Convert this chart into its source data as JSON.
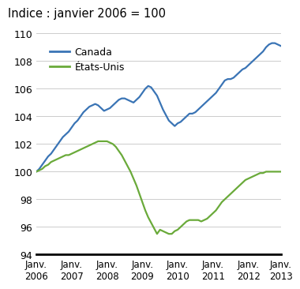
{
  "title": "Indice : janvier 2006 = 100",
  "canada_color": "#3a74b5",
  "us_color": "#6aaa3a",
  "legend_canada": "Canada",
  "legend_us": "États-Unis",
  "ylim": [
    94,
    110
  ],
  "yticks": [
    94,
    96,
    98,
    100,
    102,
    104,
    106,
    108,
    110
  ],
  "xlim_start": 0,
  "xlim_end": 83,
  "xtick_positions": [
    0,
    12,
    24,
    36,
    48,
    60,
    72,
    83
  ],
  "xtick_labels": [
    "Janv.\n2006",
    "Janv.\n2007",
    "Janv.\n2008",
    "Janv.\n2009",
    "Janv.\n2010",
    "Janv.\n2011",
    "Janv.\n2012",
    "Janv.\n2013"
  ],
  "canada": [
    100.0,
    100.2,
    100.5,
    100.8,
    101.1,
    101.3,
    101.6,
    101.9,
    102.2,
    102.5,
    102.7,
    102.9,
    103.2,
    103.5,
    103.7,
    104.0,
    104.3,
    104.5,
    104.7,
    104.8,
    104.9,
    104.8,
    104.6,
    104.4,
    104.5,
    104.6,
    104.8,
    105.0,
    105.2,
    105.3,
    105.3,
    105.2,
    105.1,
    105.0,
    105.2,
    105.4,
    105.7,
    106.0,
    106.2,
    106.1,
    105.8,
    105.5,
    105.0,
    104.5,
    104.1,
    103.7,
    103.5,
    103.3,
    103.5,
    103.6,
    103.8,
    104.0,
    104.2,
    104.2,
    104.3,
    104.5,
    104.7,
    104.9,
    105.1,
    105.3,
    105.5,
    105.7,
    106.0,
    106.3,
    106.6,
    106.7,
    106.7,
    106.8,
    107.0,
    107.2,
    107.4,
    107.5,
    107.7,
    107.9,
    108.1,
    108.3,
    108.5,
    108.7,
    109.0,
    109.2,
    109.3,
    109.3,
    109.2,
    109.1
  ],
  "us": [
    100.0,
    100.1,
    100.2,
    100.4,
    100.5,
    100.7,
    100.8,
    100.9,
    101.0,
    101.1,
    101.2,
    101.2,
    101.3,
    101.4,
    101.5,
    101.6,
    101.7,
    101.8,
    101.9,
    102.0,
    102.1,
    102.2,
    102.2,
    102.2,
    102.2,
    102.1,
    102.0,
    101.8,
    101.5,
    101.2,
    100.8,
    100.4,
    100.0,
    99.5,
    99.0,
    98.4,
    97.8,
    97.2,
    96.7,
    96.3,
    95.9,
    95.5,
    95.8,
    95.7,
    95.6,
    95.5,
    95.5,
    95.7,
    95.8,
    96.0,
    96.2,
    96.4,
    96.5,
    96.5,
    96.5,
    96.5,
    96.4,
    96.5,
    96.6,
    96.8,
    97.0,
    97.2,
    97.5,
    97.8,
    98.0,
    98.2,
    98.4,
    98.6,
    98.8,
    99.0,
    99.2,
    99.4,
    99.5,
    99.6,
    99.7,
    99.8,
    99.9,
    99.9,
    100.0,
    100.0,
    100.0,
    100.0,
    100.0,
    100.0
  ],
  "background_color": "#ffffff",
  "grid_color": "#cccccc",
  "grid_linewidth": 0.7,
  "line_linewidth": 1.6,
  "title_fontsize": 10.5,
  "tick_fontsize": 9,
  "xtick_fontsize": 8.5,
  "legend_fontsize": 9
}
